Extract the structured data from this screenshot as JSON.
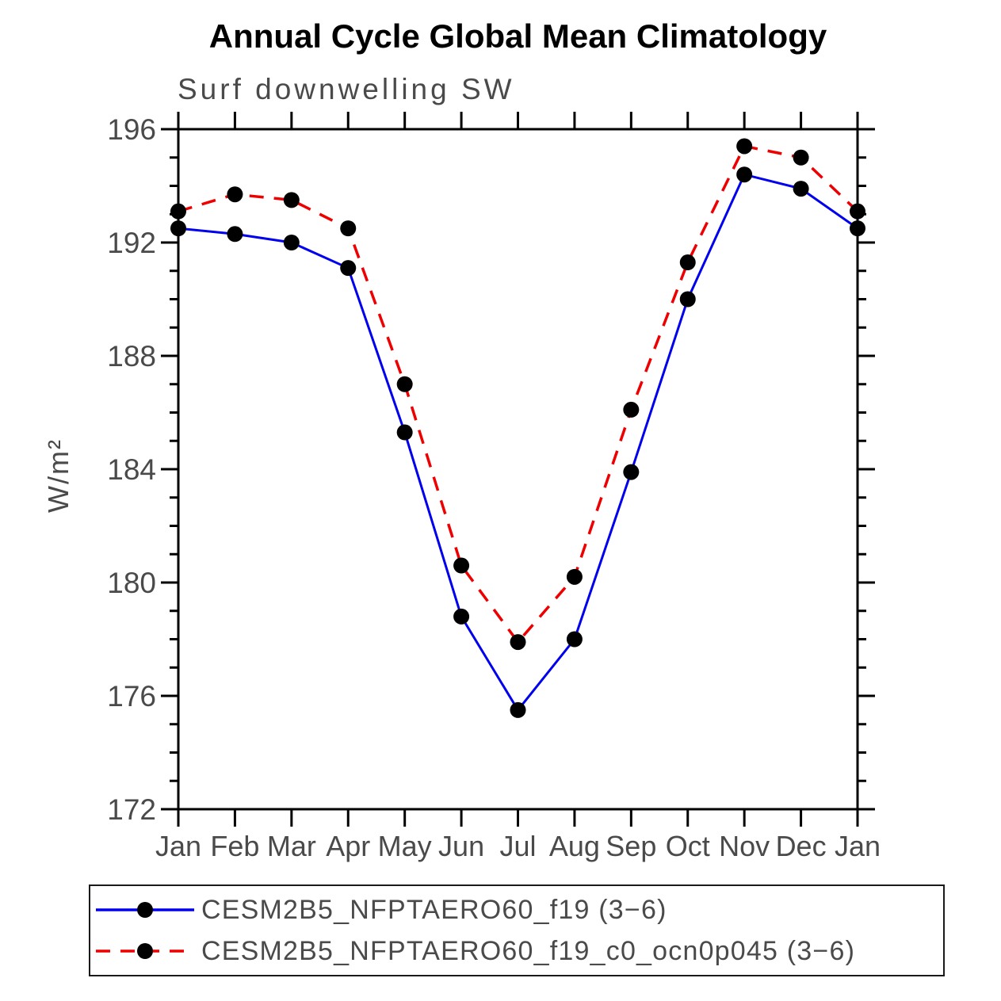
{
  "header": {
    "title": "Annual Cycle Global Mean Climatology"
  },
  "chart_data": {
    "type": "line",
    "title": "Annual Cycle Global Mean Climatology",
    "subtitle": "Surf downwelling SW",
    "ylabel": "W/m²",
    "x_labels": [
      "Jan",
      "Feb",
      "Mar",
      "Apr",
      "May",
      "Jun",
      "Jul",
      "Aug",
      "Sep",
      "Oct",
      "Nov",
      "Dec",
      "Jan"
    ],
    "yticks": [
      172,
      176,
      180,
      184,
      188,
      192,
      196
    ],
    "ylim": [
      172,
      196
    ],
    "minor_tick_step": 1,
    "grid": "off",
    "legend_position": "bottom",
    "axis_color": "#000000",
    "label_color": "#4a4a4a",
    "marker_color": "#000000",
    "series": [
      {
        "name": "CESM2B5_NFPTAERO60_f19 (3−6)",
        "color": "#0000ee",
        "line_style": "solid",
        "marker": "filled-circle",
        "values": [
          192.5,
          192.3,
          192.0,
          191.1,
          185.3,
          178.8,
          175.5,
          178.0,
          183.9,
          190.0,
          194.4,
          193.9,
          192.5
        ]
      },
      {
        "name": "CESM2B5_NFPTAERO60_f19_c0_ocn0p045 (3−6)",
        "color": "#ee0000",
        "line_style": "dashed",
        "marker": "filled-circle",
        "values": [
          193.1,
          193.7,
          193.5,
          192.5,
          187.0,
          180.6,
          177.9,
          180.2,
          186.1,
          191.3,
          195.4,
          195.0,
          193.1
        ]
      }
    ]
  }
}
